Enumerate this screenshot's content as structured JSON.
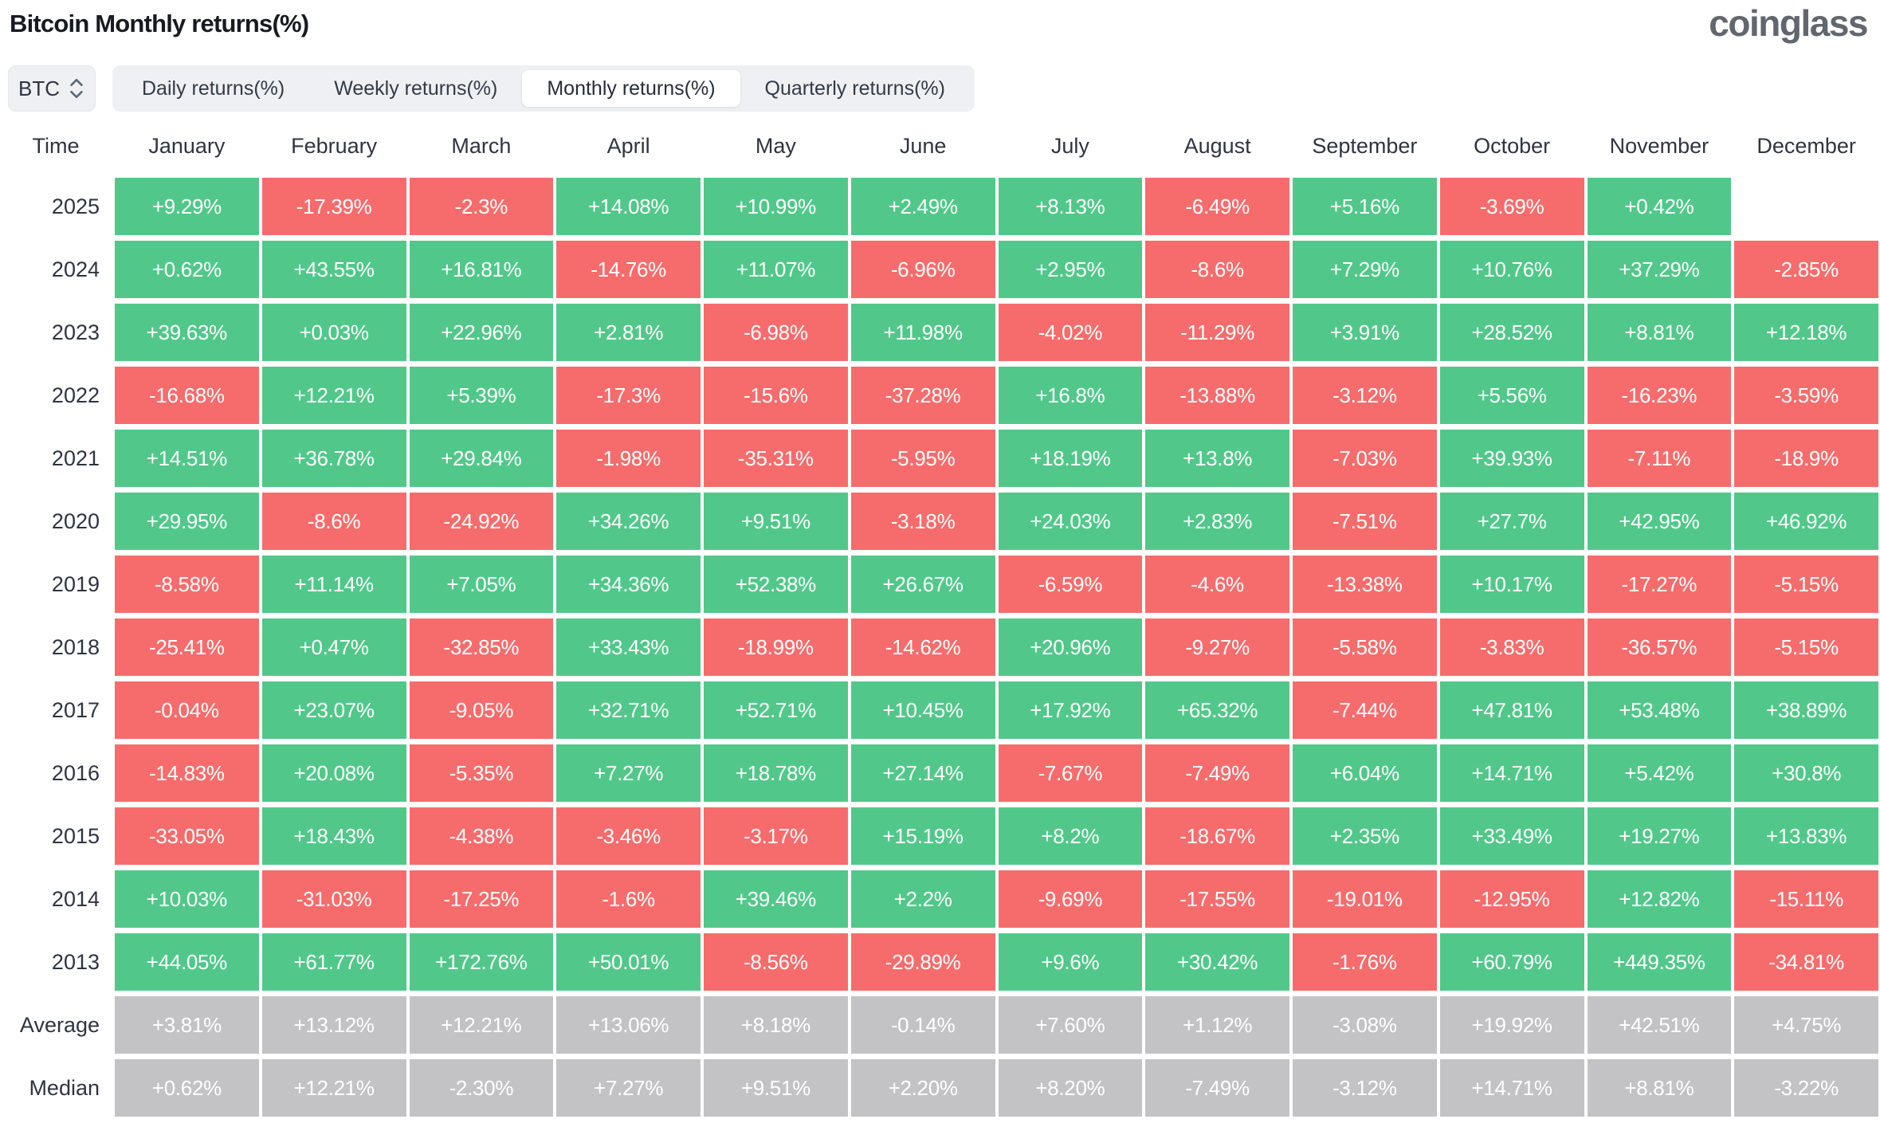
{
  "page": {
    "title": "Bitcoin Monthly returns(%)",
    "brand": "coinglass"
  },
  "controls": {
    "symbol": {
      "value": "BTC",
      "icon": "sort-chevrons-icon"
    },
    "tabs": [
      {
        "label": "Daily returns(%)",
        "active": false
      },
      {
        "label": "Weekly returns(%)",
        "active": false
      },
      {
        "label": "Monthly returns(%)",
        "active": true
      },
      {
        "label": "Quarterly returns(%)",
        "active": false
      }
    ]
  },
  "colors": {
    "positive": "#51c88a",
    "negative": "#f66c6c",
    "neutral": "#c3c3c5"
  },
  "chart_data": {
    "type": "heatmap",
    "title": "Bitcoin Monthly returns(%)",
    "legend_position": "none",
    "columns": [
      "Time",
      "January",
      "February",
      "March",
      "April",
      "May",
      "June",
      "July",
      "August",
      "September",
      "October",
      "November",
      "December"
    ],
    "rows": [
      {
        "label": "2025",
        "values": [
          "+9.29%",
          "-17.39%",
          "-2.3%",
          "+14.08%",
          "+10.99%",
          "+2.49%",
          "+8.13%",
          "-6.49%",
          "+5.16%",
          "-3.69%",
          "+0.42%",
          ""
        ]
      },
      {
        "label": "2024",
        "values": [
          "+0.62%",
          "+43.55%",
          "+16.81%",
          "-14.76%",
          "+11.07%",
          "-6.96%",
          "+2.95%",
          "-8.6%",
          "+7.29%",
          "+10.76%",
          "+37.29%",
          "-2.85%"
        ]
      },
      {
        "label": "2023",
        "values": [
          "+39.63%",
          "+0.03%",
          "+22.96%",
          "+2.81%",
          "-6.98%",
          "+11.98%",
          "-4.02%",
          "-11.29%",
          "+3.91%",
          "+28.52%",
          "+8.81%",
          "+12.18%"
        ]
      },
      {
        "label": "2022",
        "values": [
          "-16.68%",
          "+12.21%",
          "+5.39%",
          "-17.3%",
          "-15.6%",
          "-37.28%",
          "+16.8%",
          "-13.88%",
          "-3.12%",
          "+5.56%",
          "-16.23%",
          "-3.59%"
        ]
      },
      {
        "label": "2021",
        "values": [
          "+14.51%",
          "+36.78%",
          "+29.84%",
          "-1.98%",
          "-35.31%",
          "-5.95%",
          "+18.19%",
          "+13.8%",
          "-7.03%",
          "+39.93%",
          "-7.11%",
          "-18.9%"
        ]
      },
      {
        "label": "2020",
        "values": [
          "+29.95%",
          "-8.6%",
          "-24.92%",
          "+34.26%",
          "+9.51%",
          "-3.18%",
          "+24.03%",
          "+2.83%",
          "-7.51%",
          "+27.7%",
          "+42.95%",
          "+46.92%"
        ]
      },
      {
        "label": "2019",
        "values": [
          "-8.58%",
          "+11.14%",
          "+7.05%",
          "+34.36%",
          "+52.38%",
          "+26.67%",
          "-6.59%",
          "-4.6%",
          "-13.38%",
          "+10.17%",
          "-17.27%",
          "-5.15%"
        ]
      },
      {
        "label": "2018",
        "values": [
          "-25.41%",
          "+0.47%",
          "-32.85%",
          "+33.43%",
          "-18.99%",
          "-14.62%",
          "+20.96%",
          "-9.27%",
          "-5.58%",
          "-3.83%",
          "-36.57%",
          "-5.15%"
        ]
      },
      {
        "label": "2017",
        "values": [
          "-0.04%",
          "+23.07%",
          "-9.05%",
          "+32.71%",
          "+52.71%",
          "+10.45%",
          "+17.92%",
          "+65.32%",
          "-7.44%",
          "+47.81%",
          "+53.48%",
          "+38.89%"
        ]
      },
      {
        "label": "2016",
        "values": [
          "-14.83%",
          "+20.08%",
          "-5.35%",
          "+7.27%",
          "+18.78%",
          "+27.14%",
          "-7.67%",
          "-7.49%",
          "+6.04%",
          "+14.71%",
          "+5.42%",
          "+30.8%"
        ]
      },
      {
        "label": "2015",
        "values": [
          "-33.05%",
          "+18.43%",
          "-4.38%",
          "-3.46%",
          "-3.17%",
          "+15.19%",
          "+8.2%",
          "-18.67%",
          "+2.35%",
          "+33.49%",
          "+19.27%",
          "+13.83%"
        ]
      },
      {
        "label": "2014",
        "values": [
          "+10.03%",
          "-31.03%",
          "-17.25%",
          "-1.6%",
          "+39.46%",
          "+2.2%",
          "-9.69%",
          "-17.55%",
          "-19.01%",
          "-12.95%",
          "+12.82%",
          "-15.11%"
        ]
      },
      {
        "label": "2013",
        "values": [
          "+44.05%",
          "+61.77%",
          "+172.76%",
          "+50.01%",
          "-8.56%",
          "-29.89%",
          "+9.6%",
          "+30.42%",
          "-1.76%",
          "+60.79%",
          "+449.35%",
          "-34.81%"
        ]
      },
      {
        "label": "Average",
        "style": "neutral",
        "values": [
          "+3.81%",
          "+13.12%",
          "+12.21%",
          "+13.06%",
          "+8.18%",
          "-0.14%",
          "+7.60%",
          "+1.12%",
          "-3.08%",
          "+19.92%",
          "+42.51%",
          "+4.75%"
        ]
      },
      {
        "label": "Median",
        "style": "neutral",
        "values": [
          "+0.62%",
          "+12.21%",
          "-2.30%",
          "+7.27%",
          "+9.51%",
          "+2.20%",
          "+8.20%",
          "-7.49%",
          "-3.12%",
          "+14.71%",
          "+8.81%",
          "-3.22%"
        ]
      }
    ]
  }
}
